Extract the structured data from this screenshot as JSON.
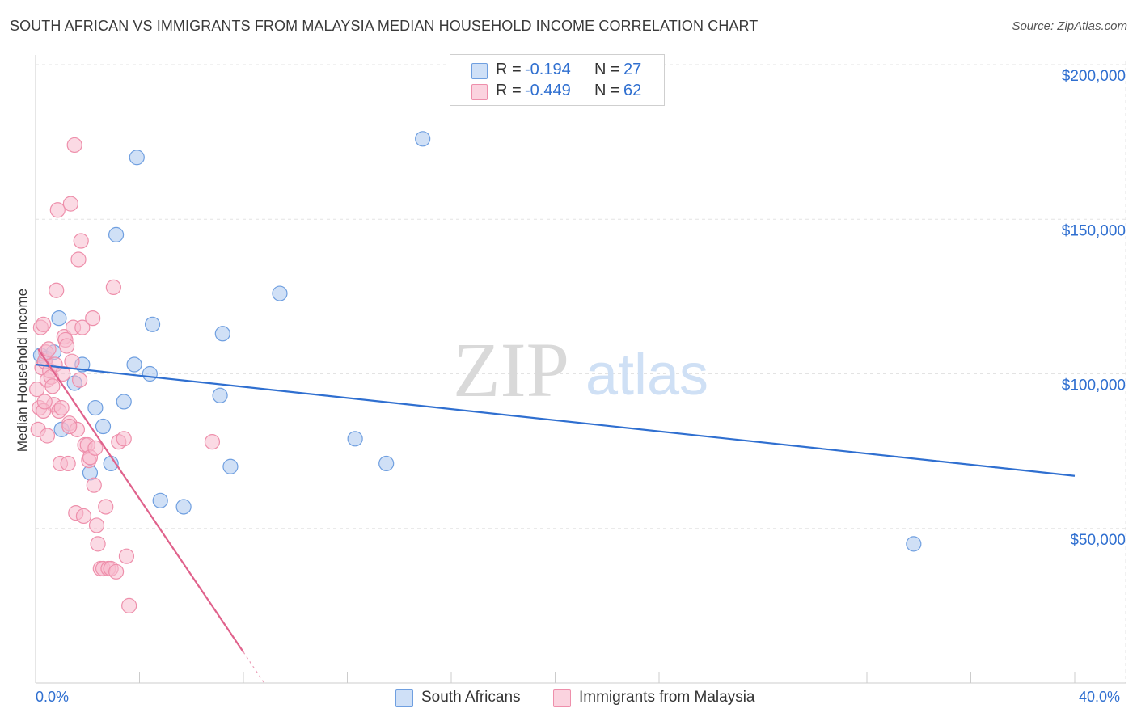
{
  "title": "SOUTH AFRICAN VS IMMIGRANTS FROM MALAYSIA MEDIAN HOUSEHOLD INCOME CORRELATION CHART",
  "source": "Source: ZipAtlas.com",
  "watermark": {
    "zip": "ZIP",
    "atlas": "atlas"
  },
  "stats": [
    {
      "r_label": "R =",
      "r_value": "-0.194",
      "n_label": "N =",
      "n_value": "27",
      "color": "#a9c6ef",
      "border": "#6f9fe0"
    },
    {
      "r_label": "R =",
      "r_value": "-0.449",
      "n_label": "N =",
      "n_value": "62",
      "color": "#f7bccd",
      "border": "#ee8fab"
    }
  ],
  "legend": [
    {
      "label": "South Africans",
      "color": "#a9c6ef",
      "border": "#6f9fe0"
    },
    {
      "label": "Immigrants from Malaysia",
      "color": "#f7bccd",
      "border": "#ee8fab"
    }
  ],
  "x_axis": {
    "min_label": "0.0%",
    "max_label": "40.0%"
  },
  "chart_data": {
    "type": "scatter",
    "title": "SOUTH AFRICAN VS IMMIGRANTS FROM MALAYSIA MEDIAN HOUSEHOLD INCOME CORRELATION CHART",
    "xlabel": "",
    "ylabel": "Median Household Income",
    "xlim": [
      0,
      40
    ],
    "ylim": [
      0,
      200000
    ],
    "y_ticks": [
      50000,
      100000,
      150000,
      200000
    ],
    "y_tick_labels": [
      "$50,000",
      "$100,000",
      "$150,000",
      "$200,000"
    ],
    "x_tick_labels": [
      "0.0%",
      "40.0%"
    ],
    "grid": true,
    "series": [
      {
        "name": "South Africans",
        "color": "#6f9fe0",
        "fill": "#a9c6ef",
        "trend": {
          "x": [
            0,
            40
          ],
          "y": [
            103000,
            67000
          ],
          "color": "#2f6fd0"
        },
        "points": [
          [
            0.2,
            106000
          ],
          [
            0.4,
            105000
          ],
          [
            0.7,
            107000
          ],
          [
            0.9,
            118000
          ],
          [
            1.0,
            82000
          ],
          [
            1.5,
            97000
          ],
          [
            1.8,
            103000
          ],
          [
            2.1,
            68000
          ],
          [
            2.3,
            89000
          ],
          [
            2.6,
            83000
          ],
          [
            2.9,
            71000
          ],
          [
            3.1,
            145000
          ],
          [
            3.4,
            91000
          ],
          [
            3.8,
            103000
          ],
          [
            3.9,
            170000
          ],
          [
            4.4,
            100000
          ],
          [
            4.5,
            116000
          ],
          [
            4.8,
            59000
          ],
          [
            5.7,
            57000
          ],
          [
            7.1,
            93000
          ],
          [
            7.2,
            113000
          ],
          [
            7.5,
            70000
          ],
          [
            9.4,
            126000
          ],
          [
            12.3,
            79000
          ],
          [
            13.5,
            71000
          ],
          [
            14.9,
            176000
          ],
          [
            33.8,
            45000
          ]
        ]
      },
      {
        "name": "Immigrants from Malaysia",
        "color": "#ee8fab",
        "fill": "#f7bccd",
        "trend": {
          "x": [
            0.1,
            8.0
          ],
          "y": [
            108000,
            10000
          ],
          "color": "#e0628c",
          "dash_to": [
            8.8,
            0
          ]
        },
        "points": [
          [
            0.05,
            95000
          ],
          [
            0.1,
            82000
          ],
          [
            0.15,
            89000
          ],
          [
            0.2,
            115000
          ],
          [
            0.25,
            102000
          ],
          [
            0.3,
            116000
          ],
          [
            0.35,
            104000
          ],
          [
            0.4,
            107000
          ],
          [
            0.45,
            98000
          ],
          [
            0.5,
            108000
          ],
          [
            0.55,
            101000
          ],
          [
            0.6,
            99000
          ],
          [
            0.65,
            96000
          ],
          [
            0.7,
            90000
          ],
          [
            0.75,
            103000
          ],
          [
            0.8,
            127000
          ],
          [
            0.85,
            153000
          ],
          [
            0.9,
            88000
          ],
          [
            0.95,
            71000
          ],
          [
            1.0,
            89000
          ],
          [
            1.05,
            100000
          ],
          [
            1.1,
            112000
          ],
          [
            1.15,
            111000
          ],
          [
            1.2,
            109000
          ],
          [
            1.25,
            71000
          ],
          [
            1.3,
            84000
          ],
          [
            1.35,
            155000
          ],
          [
            1.4,
            104000
          ],
          [
            1.45,
            115000
          ],
          [
            1.5,
            174000
          ],
          [
            1.55,
            55000
          ],
          [
            1.6,
            82000
          ],
          [
            1.65,
            137000
          ],
          [
            1.7,
            98000
          ],
          [
            1.75,
            143000
          ],
          [
            1.8,
            115000
          ],
          [
            1.85,
            54000
          ],
          [
            1.9,
            77000
          ],
          [
            2.0,
            77000
          ],
          [
            2.05,
            72000
          ],
          [
            2.1,
            73000
          ],
          [
            2.2,
            118000
          ],
          [
            2.25,
            64000
          ],
          [
            2.3,
            76000
          ],
          [
            2.35,
            51000
          ],
          [
            2.4,
            45000
          ],
          [
            2.5,
            37000
          ],
          [
            2.6,
            37000
          ],
          [
            2.7,
            57000
          ],
          [
            2.8,
            37000
          ],
          [
            2.9,
            37000
          ],
          [
            3.0,
            128000
          ],
          [
            3.1,
            36000
          ],
          [
            3.2,
            78000
          ],
          [
            3.4,
            79000
          ],
          [
            3.5,
            41000
          ],
          [
            3.6,
            25000
          ],
          [
            6.8,
            78000
          ],
          [
            0.45,
            80000
          ],
          [
            0.3,
            88000
          ],
          [
            0.35,
            91000
          ],
          [
            1.3,
            83000
          ]
        ]
      }
    ]
  }
}
